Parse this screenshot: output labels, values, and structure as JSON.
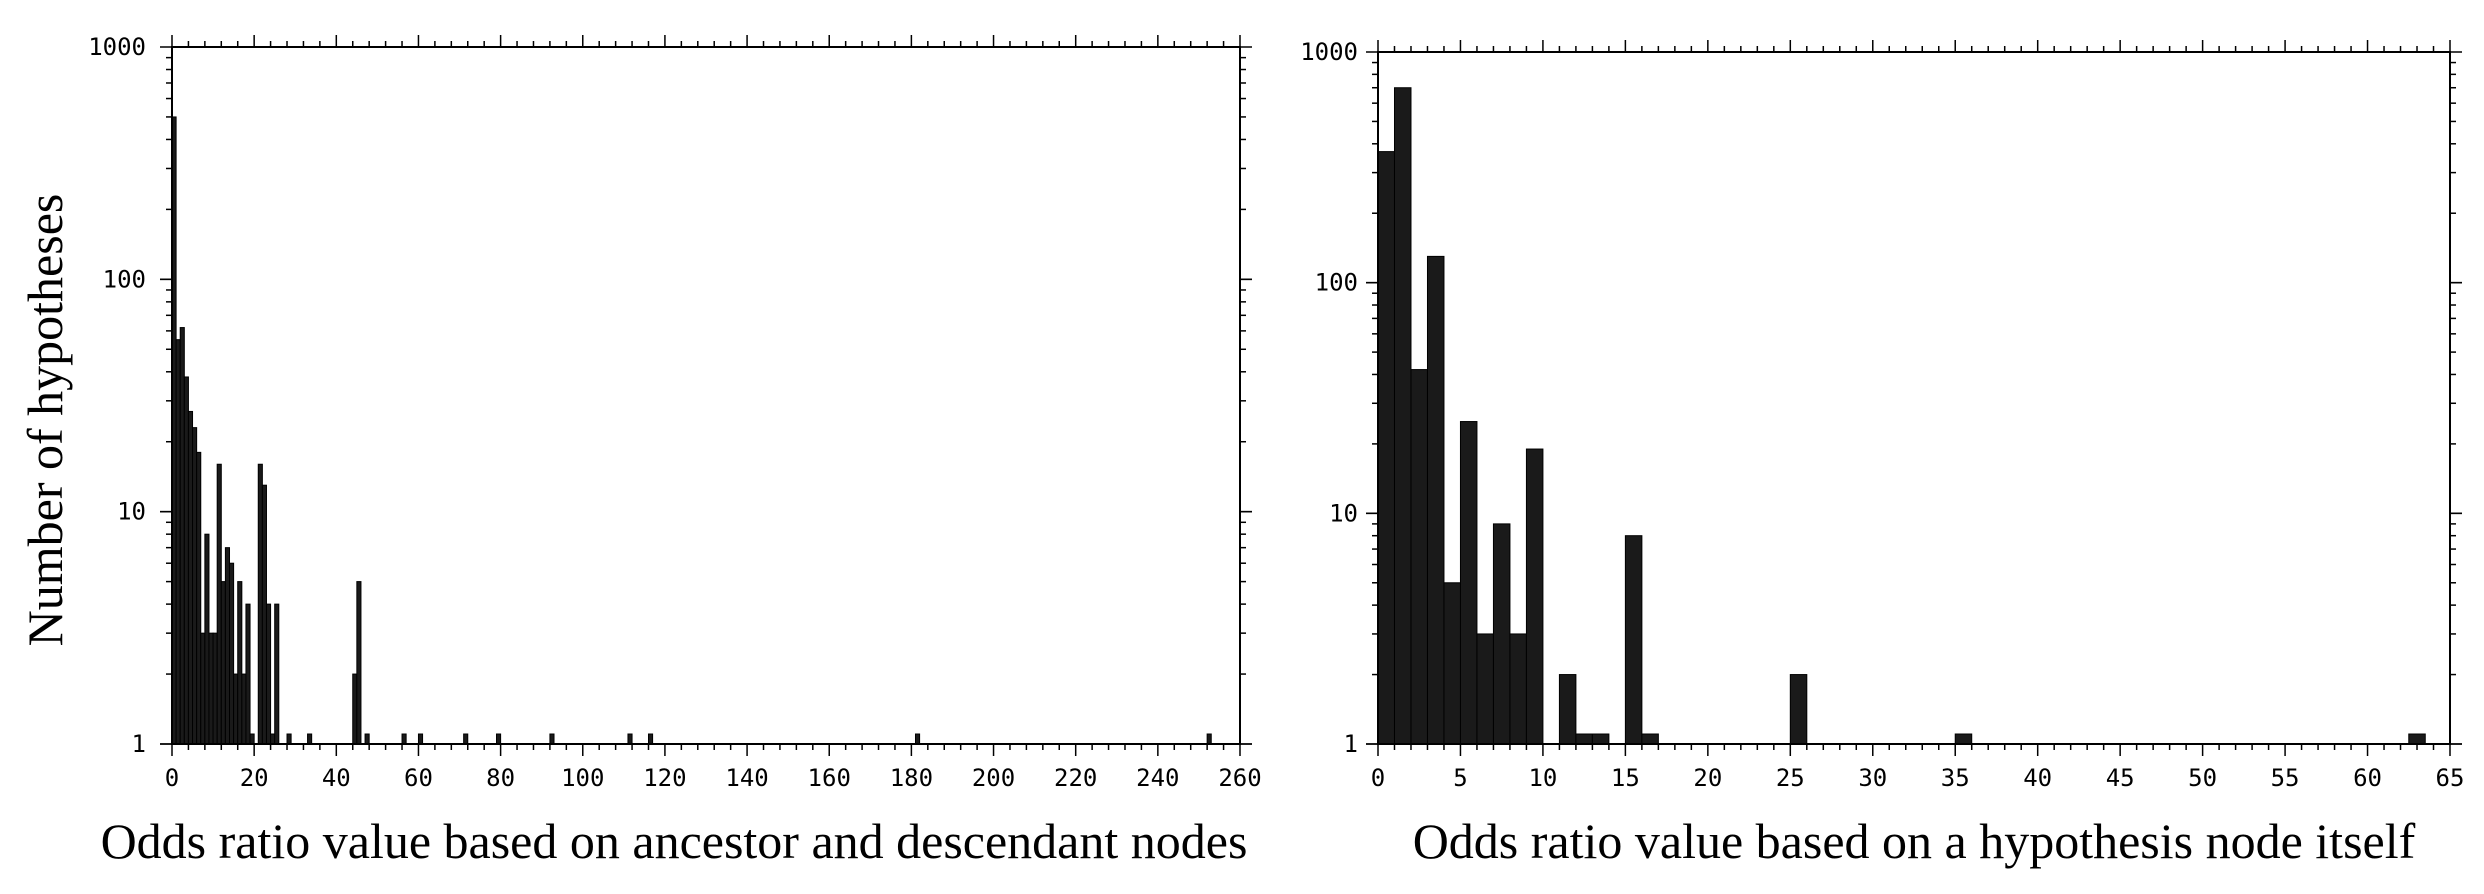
{
  "chart_data": [
    {
      "type": "bar",
      "title": "",
      "xlabel": "Odds ratio value based on ancestor and descendant nodes",
      "ylabel": "Number of hypotheses",
      "xlim": [
        0,
        260
      ],
      "ylim": [
        1,
        1000
      ],
      "y_scale": "log",
      "grid": false,
      "bin_width": 1,
      "xticks": [
        0,
        20,
        40,
        60,
        80,
        100,
        120,
        140,
        160,
        180,
        200,
        220,
        240,
        260
      ],
      "yticks": [
        1,
        10,
        100,
        1000
      ],
      "bars": [
        {
          "x": 0,
          "y": 500
        },
        {
          "x": 1,
          "y": 55
        },
        {
          "x": 2,
          "y": 62
        },
        {
          "x": 3,
          "y": 38
        },
        {
          "x": 4,
          "y": 27
        },
        {
          "x": 5,
          "y": 23
        },
        {
          "x": 6,
          "y": 18
        },
        {
          "x": 7,
          "y": 3
        },
        {
          "x": 8,
          "y": 8
        },
        {
          "x": 9,
          "y": 3
        },
        {
          "x": 10,
          "y": 3
        },
        {
          "x": 11,
          "y": 16
        },
        {
          "x": 12,
          "y": 5
        },
        {
          "x": 13,
          "y": 7
        },
        {
          "x": 14,
          "y": 6
        },
        {
          "x": 15,
          "y": 2
        },
        {
          "x": 16,
          "y": 5
        },
        {
          "x": 17,
          "y": 2
        },
        {
          "x": 18,
          "y": 4
        },
        {
          "x": 19,
          "y": 1
        },
        {
          "x": 21,
          "y": 16
        },
        {
          "x": 22,
          "y": 13
        },
        {
          "x": 23,
          "y": 4
        },
        {
          "x": 24,
          "y": 1
        },
        {
          "x": 25,
          "y": 4
        },
        {
          "x": 28,
          "y": 1
        },
        {
          "x": 33,
          "y": 1
        },
        {
          "x": 44,
          "y": 2
        },
        {
          "x": 45,
          "y": 5
        },
        {
          "x": 47,
          "y": 1
        },
        {
          "x": 56,
          "y": 1
        },
        {
          "x": 60,
          "y": 1
        },
        {
          "x": 71,
          "y": 1
        },
        {
          "x": 79,
          "y": 1
        },
        {
          "x": 92,
          "y": 1
        },
        {
          "x": 111,
          "y": 1
        },
        {
          "x": 116,
          "y": 1
        },
        {
          "x": 181,
          "y": 1
        },
        {
          "x": 252,
          "y": 1
        }
      ]
    },
    {
      "type": "bar",
      "title": "",
      "xlabel": "Odds ratio value based on a hypothesis node itself",
      "ylabel": "",
      "xlim": [
        0,
        65
      ],
      "ylim": [
        1,
        1000
      ],
      "y_scale": "log",
      "grid": false,
      "bin_width": 1,
      "xticks": [
        0,
        5,
        10,
        15,
        20,
        25,
        30,
        35,
        40,
        45,
        50,
        55,
        60,
        65
      ],
      "yticks": [
        1,
        10,
        100,
        1000
      ],
      "bars": [
        {
          "x": 0,
          "y": 370
        },
        {
          "x": 1,
          "y": 700
        },
        {
          "x": 2,
          "y": 42
        },
        {
          "x": 3,
          "y": 130
        },
        {
          "x": 4,
          "y": 5
        },
        {
          "x": 5,
          "y": 25
        },
        {
          "x": 6,
          "y": 3
        },
        {
          "x": 7,
          "y": 9
        },
        {
          "x": 8,
          "y": 3
        },
        {
          "x": 9,
          "y": 19
        },
        {
          "x": 11,
          "y": 2
        },
        {
          "x": 12,
          "y": 1
        },
        {
          "x": 13,
          "y": 1
        },
        {
          "x": 15,
          "y": 8
        },
        {
          "x": 16,
          "y": 1
        },
        {
          "x": 25,
          "y": 2
        },
        {
          "x": 35,
          "y": 1
        },
        {
          "x": 62.5,
          "y": 1
        }
      ]
    }
  ]
}
